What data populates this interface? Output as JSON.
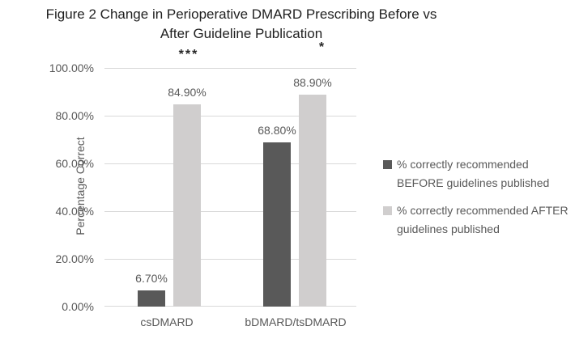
{
  "figure_title": {
    "line1": "Figure 2 Change in Perioperative DMARD Prescribing Before vs",
    "line2": "After Guideline Publication"
  },
  "chart_data": {
    "type": "bar",
    "title": "Figure 2 Change in Perioperative DMARD Prescribing Before vs After Guideline Publication",
    "ylabel": "Percentage Correct",
    "xlabel": "",
    "categories": [
      "csDMARD",
      "bDMARD/tsDMARD"
    ],
    "series": [
      {
        "name": "% correctly recommended BEFORE guidelines published",
        "values": [
          6.7,
          68.8
        ],
        "color": "#595959"
      },
      {
        "name": "% correctly recommended AFTER guidelines published",
        "values": [
          84.9,
          88.9
        ],
        "color": "#d0cece"
      }
    ],
    "data_labels": {
      "before": [
        "6.70%",
        "68.80%"
      ],
      "after": [
        "84.90%",
        "88.90%"
      ]
    },
    "significance_markers": [
      {
        "category": "csDMARD",
        "marker": "***"
      },
      {
        "category": "bDMARD/tsDMARD",
        "marker": "*"
      }
    ],
    "yticks": [
      "100.00%",
      "80.00%",
      "60.00%",
      "40.00%",
      "20.00%",
      "0.00%"
    ],
    "ylim": [
      0,
      100
    ],
    "grid": true,
    "legend_position": "right",
    "colors": {
      "before_bar": "#595959",
      "after_bar": "#d0cece",
      "gridline": "#d9d9d9",
      "axis_text": "#595959",
      "title_text": "#1f1f1f"
    }
  }
}
